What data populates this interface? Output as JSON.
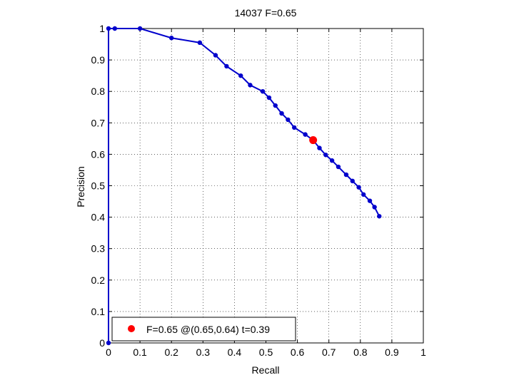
{
  "chart_data": {
    "type": "line",
    "title": "14037 F=0.65",
    "xlabel": "Recall",
    "ylabel": "Precision",
    "xlim": [
      0,
      1
    ],
    "ylim": [
      0,
      1
    ],
    "xticks": [
      "0",
      "0.1",
      "0.2",
      "0.3",
      "0.4",
      "0.5",
      "0.6",
      "0.7",
      "0.8",
      "0.9",
      "1"
    ],
    "yticks": [
      "0",
      "0.1",
      "0.2",
      "0.3",
      "0.4",
      "0.5",
      "0.6",
      "0.7",
      "0.8",
      "0.9",
      "1"
    ],
    "grid": true,
    "series": [
      {
        "color": "#0000cc",
        "points": [
          [
            0.0,
            0.0
          ],
          [
            0.0,
            1.0
          ],
          [
            0.02,
            1.0
          ],
          [
            0.1,
            1.0
          ],
          [
            0.2,
            0.97
          ],
          [
            0.29,
            0.955
          ],
          [
            0.34,
            0.915
          ],
          [
            0.375,
            0.88
          ],
          [
            0.42,
            0.85
          ],
          [
            0.45,
            0.82
          ],
          [
            0.49,
            0.8
          ],
          [
            0.51,
            0.78
          ],
          [
            0.53,
            0.755
          ],
          [
            0.55,
            0.73
          ],
          [
            0.57,
            0.71
          ],
          [
            0.59,
            0.685
          ],
          [
            0.625,
            0.663
          ],
          [
            0.65,
            0.645
          ],
          [
            0.67,
            0.62
          ],
          [
            0.69,
            0.598
          ],
          [
            0.71,
            0.58
          ],
          [
            0.73,
            0.56
          ],
          [
            0.755,
            0.535
          ],
          [
            0.775,
            0.515
          ],
          [
            0.795,
            0.495
          ],
          [
            0.81,
            0.472
          ],
          [
            0.83,
            0.452
          ],
          [
            0.845,
            0.432
          ],
          [
            0.86,
            0.403
          ]
        ]
      }
    ],
    "highlight": {
      "x": 0.65,
      "y": 0.645,
      "color": "#ff0000"
    },
    "legend": {
      "placement": "bottom-left",
      "label": "F=0.65 @(0.65,0.64) t=0.39"
    }
  }
}
